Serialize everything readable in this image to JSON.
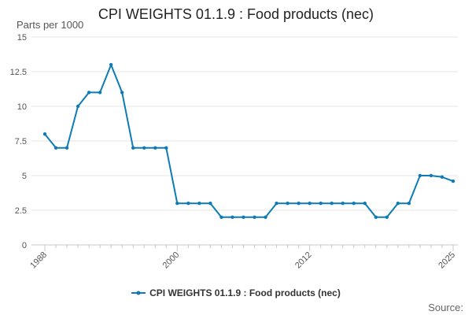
{
  "chart_data": {
    "type": "line",
    "title": "CPI WEIGHTS 01.1.9 : Food products (nec)",
    "ylabel": "Parts per 1000",
    "xlabel": "",
    "source_label": "Source:",
    "ylim": [
      0,
      15
    ],
    "xlim": [
      1988,
      2025
    ],
    "y_ticks": [
      "0",
      "2.5",
      "5",
      "7.5",
      "10",
      "12.5",
      "15"
    ],
    "y_tick_values": [
      0,
      2.5,
      5,
      7.5,
      10,
      12.5,
      15
    ],
    "x_ticks": [
      "1988",
      "2000",
      "2012",
      "2025"
    ],
    "x_tick_values": [
      1988,
      2000,
      2012,
      2025
    ],
    "grid": true,
    "legend_placement": "bottom",
    "color": "#0e7bb5",
    "series": [
      {
        "name": "CPI WEIGHTS 01.1.9 : Food products (nec)",
        "x": [
          1988,
          1989,
          1990,
          1991,
          1992,
          1993,
          1994,
          1995,
          1996,
          1997,
          1998,
          1999,
          2000,
          2001,
          2002,
          2003,
          2004,
          2005,
          2006,
          2007,
          2008,
          2009,
          2010,
          2011,
          2012,
          2013,
          2014,
          2015,
          2016,
          2017,
          2018,
          2019,
          2020,
          2021,
          2022,
          2023,
          2024,
          2025
        ],
        "values": [
          8,
          7,
          7,
          10,
          11,
          11,
          13,
          11,
          7,
          7,
          7,
          7,
          3,
          3,
          3,
          3,
          2,
          2,
          2,
          2,
          2,
          3,
          3,
          3,
          3,
          3,
          3,
          3,
          3,
          3,
          2,
          2,
          3,
          3,
          5,
          5,
          4.9,
          4.6
        ]
      }
    ]
  }
}
